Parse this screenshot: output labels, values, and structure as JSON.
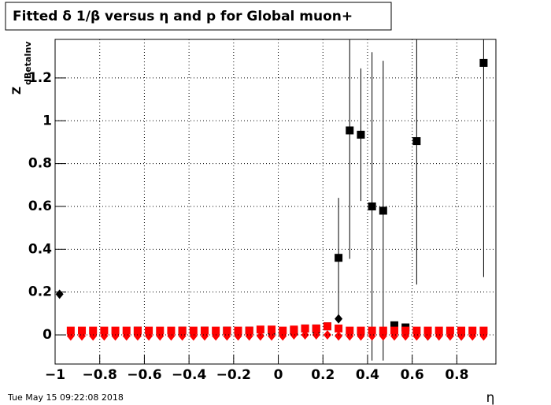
{
  "chart_data": {
    "type": "scatter",
    "title": "Fitted δ 1/β versus η and p for Global muon+",
    "x_label": "η",
    "y_label": "Z",
    "y_label_sub": "dBetaInv",
    "timestamp": "Tue May 15 09:22:08 2018",
    "xlim": [
      -1,
      0.975
    ],
    "ylim": [
      -0.136,
      1.38
    ],
    "xticks": [
      {
        "value": -1,
        "label": "−1"
      },
      {
        "value": -0.8,
        "label": "−0.8"
      },
      {
        "value": -0.6,
        "label": "−0.6"
      },
      {
        "value": -0.4,
        "label": "−0.4"
      },
      {
        "value": -0.2,
        "label": "−0.2"
      },
      0,
      0.2,
      0.4,
      0.6,
      0.8
    ],
    "yticks": [
      0,
      0.2,
      0.4,
      0.6,
      0.8,
      1,
      1.2
    ],
    "grid": true,
    "series": [
      {
        "color": "#000000",
        "marker": "square",
        "x": [
          -0.63,
          -0.43,
          -0.33,
          -0.23,
          -0.13,
          0.07,
          0.12,
          0.17,
          0.22,
          0.27,
          0.32,
          0.37,
          0.42,
          0.47,
          0.52,
          0.57,
          0.62,
          0.92
        ],
        "values": [
          0.02,
          0.02,
          0.02,
          0.02,
          0.02,
          0.02,
          0.03,
          0.03,
          0.04,
          0.36,
          0.955,
          0.935,
          0.6,
          0.58,
          0.045,
          0.035,
          0.905,
          1.27
        ],
        "errors": [
          0,
          0,
          0,
          0,
          0,
          0,
          0,
          0,
          0,
          0.28,
          0.6,
          0.31,
          0.72,
          0.7,
          0,
          0,
          0.67,
          1.0
        ]
      },
      {
        "color": "#000000",
        "marker": "diamond",
        "x": [
          -0.98,
          -0.63,
          -0.43,
          -0.23,
          -0.03,
          0.07,
          0.17,
          0.27,
          0.67,
          0.82
        ],
        "values": [
          0.19,
          0.005,
          0.005,
          0.005,
          0.005,
          0.01,
          0.01,
          0.075,
          -0.005,
          -0.005
        ]
      },
      {
        "color": "#ff0000",
        "marker": "square",
        "x": [
          -0.93,
          -0.88,
          -0.83,
          -0.78,
          -0.73,
          -0.68,
          -0.63,
          -0.58,
          -0.53,
          -0.48,
          -0.43,
          -0.38,
          -0.33,
          -0.28,
          -0.23,
          -0.18,
          -0.13,
          -0.08,
          -0.03,
          0.02,
          0.07,
          0.12,
          0.17,
          0.22,
          0.27,
          0.32,
          0.37,
          0.42,
          0.47,
          0.52,
          0.57,
          0.62,
          0.67,
          0.72,
          0.77,
          0.82,
          0.87,
          0.92
        ],
        "values": [
          0.02,
          0.02,
          0.02,
          0.02,
          0.02,
          0.02,
          0.02,
          0.02,
          0.02,
          0.02,
          0.02,
          0.02,
          0.02,
          0.02,
          0.02,
          0.02,
          0.02,
          0.025,
          0.025,
          0.02,
          0.025,
          0.03,
          0.03,
          0.04,
          0.03,
          0.02,
          0.02,
          0.02,
          0.02,
          0.02,
          0.02,
          0.02,
          0.02,
          0.02,
          0.02,
          0.02,
          0.02,
          0.02
        ]
      },
      {
        "color": "#ff0000",
        "marker": "diamond",
        "x": [
          -0.93,
          -0.88,
          -0.83,
          -0.78,
          -0.73,
          -0.68,
          -0.63,
          -0.58,
          -0.53,
          -0.48,
          -0.43,
          -0.38,
          -0.33,
          -0.28,
          -0.23,
          -0.18,
          -0.13,
          -0.08,
          -0.03,
          0.02,
          0.07,
          0.12,
          0.17,
          0.22,
          0.27,
          0.32,
          0.37,
          0.42,
          0.47,
          0.52,
          0.57,
          0.62,
          0.67,
          0.72,
          0.77,
          0.82,
          0.87,
          0.92
        ],
        "values": [
          -0.005,
          -0.005,
          -0.005,
          -0.005,
          -0.005,
          -0.005,
          -0.005,
          -0.005,
          -0.005,
          -0.005,
          -0.005,
          -0.005,
          -0.005,
          -0.005,
          -0.005,
          -0.005,
          -0.005,
          -0.005,
          -0.005,
          -0.005,
          0.0,
          0.0,
          0.0,
          0.0,
          -0.005,
          -0.005,
          -0.005,
          -0.005,
          -0.005,
          -0.005,
          -0.005,
          -0.005,
          -0.005,
          -0.005,
          -0.005,
          -0.005,
          -0.005,
          -0.005
        ]
      }
    ]
  }
}
